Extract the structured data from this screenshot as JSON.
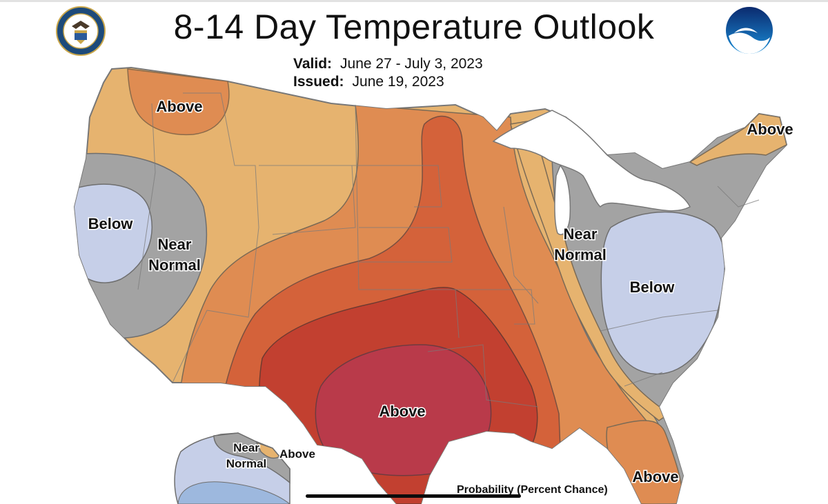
{
  "header": {
    "title": "8-14 Day Temperature Outlook",
    "valid_label": "Valid:",
    "valid_value": "June 27 - July 3, 2023",
    "issued_label": "Issued:",
    "issued_value": "June 19, 2023"
  },
  "logos": {
    "left": "department-of-commerce-seal",
    "right": "noaa-logo"
  },
  "map_labels": {
    "nw_above": "Above",
    "west_below": "Below",
    "west_near_line1": "Near",
    "west_near_line2": "Normal",
    "ne_above": "Above",
    "midwest_near_line1": "Near",
    "midwest_near_line2": "Normal",
    "east_below": "Below",
    "south_above": "Above",
    "alaska_near_line1": "Near",
    "alaska_near_line2": "Normal",
    "alaska_above": "Above",
    "fl_above": "Above"
  },
  "legend": {
    "probability_label": "Probability (Percent Chance)"
  },
  "colors": {
    "above_light": "#e6b36f",
    "above_med": "#df8c52",
    "above_strong": "#d4623a",
    "above_stronger": "#c24030",
    "above_strongest": "#b93a4a",
    "near_normal": "#a3a3a3",
    "below_light": "#c6cfe8",
    "water": "#ffffff"
  }
}
